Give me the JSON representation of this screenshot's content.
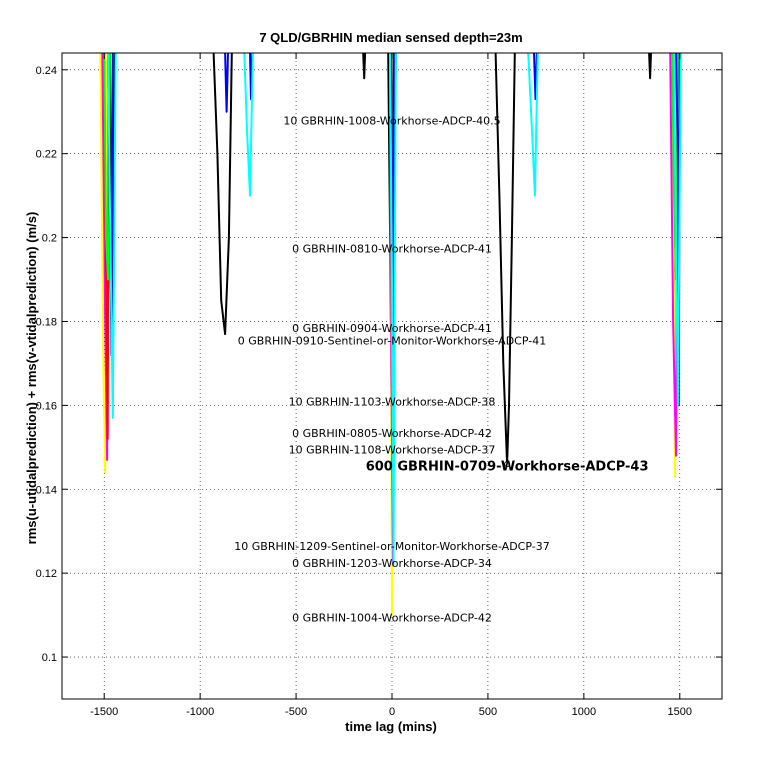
{
  "chart_data": {
    "type": "line",
    "title": "7 QLD/GBRHIN median sensed depth=23m",
    "xlabel": "time lag (mins)",
    "ylabel": "rms(u-utidalprediction) + rms(v-vtidalprediction) (m/s)",
    "xlim": [
      -1720,
      1720
    ],
    "ylim": [
      0.09,
      0.244
    ],
    "x_ticks": [
      -1500,
      -1000,
      -500,
      0,
      500,
      1000,
      1500
    ],
    "x_tick_labels": [
      "-1500",
      "-1000",
      "-500",
      "0",
      "500",
      "1000",
      "1500"
    ],
    "y_ticks": [
      0.1,
      0.12,
      0.14,
      0.16,
      0.18,
      0.2,
      0.22,
      0.24
    ],
    "y_tick_labels": [
      "0.1",
      "0.12",
      "0.14",
      "0.16",
      "0.18",
      "0.2",
      "0.22",
      "0.24"
    ],
    "grid": true,
    "series": [
      {
        "color": "#000000",
        "x": [
          -930,
          -910,
          -890,
          -870,
          -850,
          -835
        ],
        "y": [
          0.244,
          0.22,
          0.185,
          0.177,
          0.2,
          0.244
        ]
      },
      {
        "color": "#000000",
        "x": [
          540,
          560,
          580,
          600,
          610,
          625,
          640
        ],
        "y": [
          0.244,
          0.21,
          0.17,
          0.146,
          0.16,
          0.2,
          0.244
        ]
      },
      {
        "color": "#000000",
        "x": [
          -150,
          -145,
          -140
        ],
        "y": [
          0.244,
          0.238,
          0.244
        ]
      },
      {
        "color": "#000000",
        "x": [
          1340,
          1345,
          1350
        ],
        "y": [
          0.244,
          0.238,
          0.244
        ]
      },
      {
        "color": "#000000",
        "x": [
          -1470,
          -1465,
          -1455,
          -1445
        ],
        "y": [
          0.244,
          0.2,
          0.17,
          0.244
        ]
      },
      {
        "color": "#000000",
        "x": [
          -20,
          -10,
          0,
          10,
          20
        ],
        "y": [
          0.244,
          0.2,
          0.15,
          0.2,
          0.244
        ]
      },
      {
        "color": "#000000",
        "x": [
          1460,
          1470,
          1480,
          1490
        ],
        "y": [
          0.244,
          0.2,
          0.16,
          0.244
        ]
      },
      {
        "color": "#ffff00",
        "x": [
          -1520,
          -1505,
          -1495,
          -1485
        ],
        "y": [
          0.244,
          0.17,
          0.144,
          0.244
        ]
      },
      {
        "color": "#ffff00",
        "x": [
          -10,
          -5,
          0,
          5,
          10
        ],
        "y": [
          0.244,
          0.18,
          0.11,
          0.18,
          0.244
        ]
      },
      {
        "color": "#ffff00",
        "x": [
          1460,
          1470,
          1475,
          1485
        ],
        "y": [
          0.244,
          0.18,
          0.143,
          0.244
        ]
      },
      {
        "color": "#ff00ff",
        "x": [
          -1510,
          -1495,
          -1485,
          -1475
        ],
        "y": [
          0.244,
          0.18,
          0.147,
          0.244
        ]
      },
      {
        "color": "#ff00ff",
        "x": [
          -10,
          -3,
          5,
          12
        ],
        "y": [
          0.244,
          0.17,
          0.122,
          0.244
        ]
      },
      {
        "color": "#ff00ff",
        "x": [
          1450,
          1465,
          1480,
          1490
        ],
        "y": [
          0.244,
          0.18,
          0.148,
          0.244
        ]
      },
      {
        "color": "#ff0000",
        "x": [
          -1500,
          -1490,
          -1482,
          -1475
        ],
        "y": [
          0.244,
          0.19,
          0.152,
          0.244
        ]
      },
      {
        "color": "#ff0000",
        "x": [
          -3,
          2,
          8,
          15
        ],
        "y": [
          0.244,
          0.22,
          0.235,
          0.244
        ]
      },
      {
        "color": "#00ff00",
        "x": [
          -1500,
          -1490,
          -1480,
          -1470
        ],
        "y": [
          0.244,
          0.2,
          0.19,
          0.244
        ]
      },
      {
        "color": "#00ff00",
        "x": [
          -10,
          -3,
          3,
          10
        ],
        "y": [
          0.244,
          0.2,
          0.15,
          0.244
        ]
      },
      {
        "color": "#00ff00",
        "x": [
          1460,
          1470,
          1480,
          1490
        ],
        "y": [
          0.244,
          0.21,
          0.19,
          0.244
        ]
      },
      {
        "color": "#0000ff",
        "x": [
          -1480,
          -1470,
          -1462,
          -1455
        ],
        "y": [
          0.244,
          0.2,
          0.172,
          0.244
        ]
      },
      {
        "color": "#0000ff",
        "x": [
          -870,
          -862,
          -855
        ],
        "y": [
          0.244,
          0.23,
          0.244
        ]
      },
      {
        "color": "#0000ff",
        "x": [
          -740,
          -735,
          -728
        ],
        "y": [
          0.244,
          0.233,
          0.244
        ]
      },
      {
        "color": "#0000ff",
        "x": [
          -5,
          0,
          5,
          10
        ],
        "y": [
          0.244,
          0.2,
          0.15,
          0.244
        ]
      },
      {
        "color": "#0000ff",
        "x": [
          740,
          748,
          755
        ],
        "y": [
          0.244,
          0.233,
          0.244
        ]
      },
      {
        "color": "#0000ff",
        "x": [
          1480,
          1490,
          1495,
          1500
        ],
        "y": [
          0.244,
          0.22,
          0.16,
          0.244
        ]
      },
      {
        "color": "#00ffff",
        "x": [
          -1480,
          -1465,
          -1455,
          -1440
        ],
        "y": [
          0.244,
          0.19,
          0.157,
          0.244
        ]
      },
      {
        "color": "#00ffff",
        "x": [
          -770,
          -755,
          -740,
          -725
        ],
        "y": [
          0.244,
          0.225,
          0.21,
          0.244
        ]
      },
      {
        "color": "#00ffff",
        "x": [
          -10,
          0,
          8,
          20
        ],
        "y": [
          0.244,
          0.19,
          0.122,
          0.244
        ]
      },
      {
        "color": "#00ffff",
        "x": [
          710,
          730,
          745,
          760
        ],
        "y": [
          0.244,
          0.225,
          0.21,
          0.244
        ]
      },
      {
        "color": "#00ffff",
        "x": [
          1470,
          1480,
          1490,
          1505
        ],
        "y": [
          0.244,
          0.2,
          0.16,
          0.244
        ]
      }
    ],
    "markers": [
      {
        "x": 600,
        "y": 0.146
      }
    ],
    "annotations": [
      {
        "text": "10 GBRHIN-1008-Workhorse-ADCP-40.5",
        "x": 0,
        "y": 0.227,
        "big": false
      },
      {
        "text": "0 GBRHIN-0810-Workhorse-ADCP-41",
        "x": 0,
        "y": 0.1965,
        "big": false
      },
      {
        "text": "0 GBRHIN-0904-Workhorse-ADCP-41",
        "x": 0,
        "y": 0.1775,
        "big": false
      },
      {
        "text": "0 GBRHIN-0910-Sentinel-or-Monitor-Workhorse-ADCP-41",
        "x": 0,
        "y": 0.1745,
        "big": false
      },
      {
        "text": "10 GBRHIN-1103-Workhorse-ADCP-38",
        "x": 0,
        "y": 0.16,
        "big": false
      },
      {
        "text": "0 GBRHIN-0805-Workhorse-ADCP-42",
        "x": 0,
        "y": 0.1525,
        "big": false
      },
      {
        "text": "10 GBRHIN-1108-Workhorse-ADCP-37",
        "x": 0,
        "y": 0.1485,
        "big": false
      },
      {
        "text": "600 GBRHIN-0709-Workhorse-ADCP-43",
        "x": 600,
        "y": 0.1445,
        "big": true
      },
      {
        "text": "10 GBRHIN-1209-Sentinel-or-Monitor-Workhorse-ADCP-37",
        "x": 0,
        "y": 0.1255,
        "big": false
      },
      {
        "text": "0 GBRHIN-1203-Workhorse-ADCP-34",
        "x": 0,
        "y": 0.1215,
        "big": false
      },
      {
        "text": "0 GBRHIN-1004-Workhorse-ADCP-42",
        "x": 0,
        "y": 0.1085,
        "big": false
      }
    ]
  }
}
